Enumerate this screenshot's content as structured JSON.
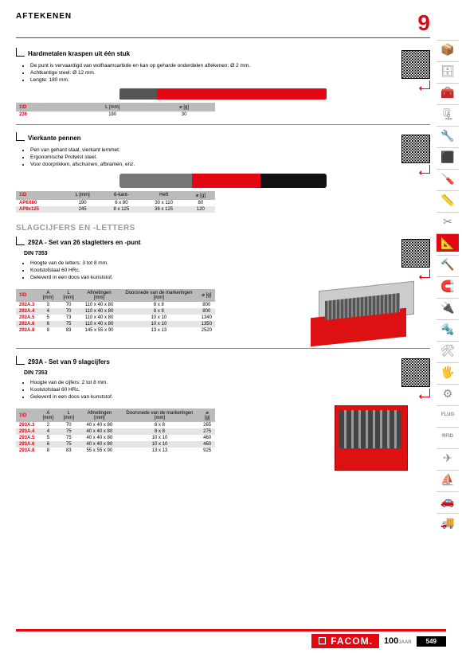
{
  "header": {
    "title": "AFTEKENEN",
    "chapter": "9"
  },
  "sectionA": {
    "title": "Hardmetalen kraspen uit één stuk",
    "bullets": [
      "De punt is vervaardigd van wolfraamcarbide en kan op geharde onderdelen aftekenen: Ø 2 mm.",
      "Achtkantige steel: Ø 12 mm.",
      "Lengte: 180 mm."
    ],
    "table": {
      "headers": [
        "1\\D",
        "L [mm]",
        "⌀ [g]"
      ],
      "rows": [
        [
          "236",
          "180",
          "30"
        ]
      ]
    }
  },
  "sectionB": {
    "title": "Vierkante pennen",
    "bullets": [
      "Pen van gehard staal, vierkant lemmet.",
      "Ergonomische Protwist steel.",
      "Voor doorprikken, afschuinen, afbramen, enz."
    ],
    "table": {
      "headers": [
        "1\\D",
        "L [mm]",
        "6-kant-",
        "Heft",
        "⌀ [g]"
      ],
      "rows": [
        [
          "AP6X80",
          "190",
          "6 x 80",
          "30 x 110",
          "80"
        ],
        [
          "AP8x125",
          "245",
          "8 x 125",
          "36 x 125",
          "120"
        ]
      ]
    }
  },
  "subsection_title": "SLAGCIJFERS EN -LETTERS",
  "sectionC": {
    "title": "292A - Set van 26 slagletters en -punt",
    "din": "DIN 7353",
    "bullets": [
      "Hoogte van de letters: 3 tot 8 mm.",
      "Koolstofstaal 60 HRc.",
      "Geleverd in een doos van kunststof."
    ],
    "table": {
      "headers": [
        "1\\D",
        "A [mm]",
        "L [mm]",
        "Afmetingen [mm]",
        "Doorsnede van de markeringen [mm]",
        "⌀ [g]"
      ],
      "rows": [
        [
          "292A.3",
          "3",
          "70",
          "110 x 40 x 80",
          "8 x 8",
          "800"
        ],
        [
          "292A.4",
          "4",
          "70",
          "110 x 40 x 80",
          "8 x 8",
          "800"
        ],
        [
          "292A.5",
          "5",
          "73",
          "110 x 40 x 80",
          "10 x 10",
          "1340"
        ],
        [
          "292A.6",
          "6",
          "75",
          "110 x 40 x 80",
          "10 x 10",
          "1350"
        ],
        [
          "292A.8",
          "8",
          "83",
          "145 x 55 x 90",
          "13 x 13",
          "2520"
        ]
      ]
    }
  },
  "sectionD": {
    "title": "293A - Set van 9 slagcijfers",
    "din": "DIN 7353",
    "bullets": [
      "Hoogte van de cijfers: 2 tot 8 mm.",
      "Koolstofstaal 60 HRc.",
      "Geleverd in een doos van kunststof."
    ],
    "table": {
      "headers": [
        "1\\D",
        "A [mm]",
        "L [mm]",
        "Afmetingen [mm]",
        "Doorsnede van de markeringen [mm]",
        "⌀ [g]"
      ],
      "rows": [
        [
          "293A.3",
          "2",
          "70",
          "40 x 40 x 80",
          "8 x 8",
          "265"
        ],
        [
          "293A.4",
          "4",
          "75",
          "40 x 40 x 80",
          "8 x 8",
          "275"
        ],
        [
          "293A.5",
          "5",
          "75",
          "40 x 40 x 80",
          "10 x 10",
          "460"
        ],
        [
          "293A.6",
          "6",
          "75",
          "40 x 40 x 80",
          "10 x 10",
          "460"
        ],
        [
          "293A.8",
          "8",
          "83",
          "55 x 55 x 90",
          "13 x 13",
          "925"
        ]
      ]
    }
  },
  "sidebar_icons": [
    "📦",
    "🗄",
    "🧰",
    "🗜",
    "🔧",
    "⬛",
    "🪛",
    "📏",
    "✂",
    "📐",
    "🔨",
    "🧲",
    "🔌",
    "🔩",
    "🛠",
    "🖐",
    "⚙",
    "FLUO",
    "RFID",
    "✈",
    "⛵",
    "🚗",
    "🚚"
  ],
  "sidebar_active_index": 9,
  "footer": {
    "brand": "☐ FACOM.",
    "years": "100",
    "years_suffix": "JAAR",
    "page": "549"
  },
  "colors": {
    "accent": "#e30613",
    "divider": "#888",
    "header_bg": "#bbb",
    "altrow": "#e5e5e5"
  }
}
